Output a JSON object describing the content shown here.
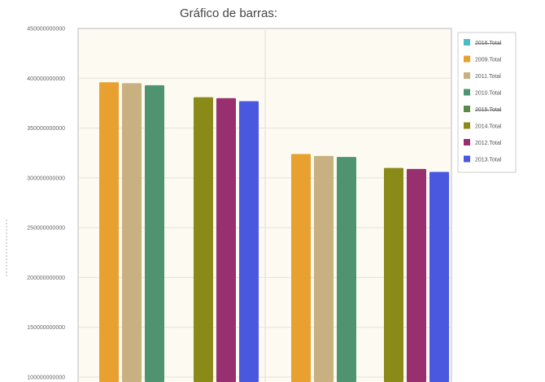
{
  "chart_data": {
    "type": "bar",
    "title": "Gráfico de barras:",
    "xlabel": "",
    "ylabel": "",
    "ylim": [
      100000000000,
      450000000000
    ],
    "yticks": [
      100000000000,
      150000000000,
      200000000000,
      250000000000,
      300000000000,
      350000000000,
      400000000000,
      450000000000
    ],
    "ytick_labels": [
      "100000000000",
      "150000000000",
      "200000000000",
      "250000000000",
      "300000000000",
      "350000000000",
      "400000000000",
      "450000000000"
    ],
    "grid": true,
    "legend_position": "right",
    "groups": [
      {
        "bars": [
          {
            "series": "2009.Total",
            "value": 396000000000
          },
          {
            "series": "2011.Total",
            "value": 395000000000
          },
          {
            "series": "2010.Total",
            "value": 393000000000
          }
        ]
      },
      {
        "bars": [
          {
            "series": "2014.Total",
            "value": 381000000000
          },
          {
            "series": "2012.Total",
            "value": 380000000000
          },
          {
            "series": "2013.Total",
            "value": 377000000000
          }
        ]
      },
      {
        "bars": [
          {
            "series": "2009.Total",
            "value": 324000000000
          },
          {
            "series": "2011.Total",
            "value": 322000000000
          },
          {
            "series": "2010.Total",
            "value": 321000000000
          }
        ]
      },
      {
        "bars": [
          {
            "series": "2014.Total",
            "value": 310000000000
          },
          {
            "series": "2012.Total",
            "value": 309000000000
          },
          {
            "series": "2013.Total",
            "value": 306000000000
          }
        ]
      }
    ],
    "legend": [
      {
        "name": "2016.Total",
        "color": "#4bbcc4",
        "hidden": true
      },
      {
        "name": "2009.Total",
        "color": "#e8a030",
        "hidden": false
      },
      {
        "name": "2011.Total",
        "color": "#c8b080",
        "hidden": false
      },
      {
        "name": "2010.Total",
        "color": "#4f9470",
        "hidden": false
      },
      {
        "name": "2015.Total",
        "color": "#5a8a48",
        "hidden": true
      },
      {
        "name": "2014.Total",
        "color": "#8a8a18",
        "hidden": false
      },
      {
        "name": "2012.Total",
        "color": "#983070",
        "hidden": false
      },
      {
        "name": "2013.Total",
        "color": "#4a58e0",
        "hidden": false
      }
    ]
  }
}
